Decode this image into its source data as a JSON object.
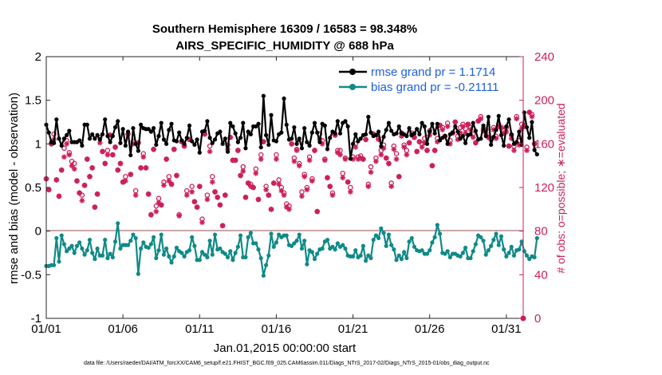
{
  "colors": {
    "rmse": "#000000",
    "bias": "#0f8a87",
    "obs": "#cc1f5c",
    "zero_line": "#c8a7a7",
    "legend_text": "#1f5fe0"
  },
  "chart_data": {
    "type": "line",
    "title": "Southern Hemisphere 16309 / 16583 = 98.348%",
    "subtitle": "AIRS_SPECIFIC_HUMIDITY @ 688 hPa",
    "xlabel": "Jan.01,2015 00:00:00 start",
    "ylabel": "rmse and bias (model - observation)",
    "y2label": "# of obs: o=possible; ∗=evaluated",
    "x_ticks": [
      "01/01",
      "01/06",
      "01/11",
      "01/16",
      "01/21",
      "01/26",
      "01/31"
    ],
    "x_tick_days": [
      1,
      6,
      11,
      16,
      21,
      26,
      31
    ],
    "xlim": [
      1,
      32.1
    ],
    "ylim": [
      -1,
      2
    ],
    "y_ticks": [
      "-1",
      "-0.5",
      "0",
      "0.5",
      "1",
      "1.5",
      "2"
    ],
    "y2lim": [
      0,
      240
    ],
    "y2_ticks": [
      "0",
      "40",
      "80",
      "120",
      "160",
      "200",
      "240"
    ],
    "legend": {
      "position": "top-right",
      "rmse_label": "rmse grand pr = 1.1714",
      "bias_label": "bias grand pr = -0.21111"
    },
    "series": [
      {
        "name": "rmse",
        "axis": "left",
        "values": [
          1.22,
          1.13,
          1.02,
          1.01,
          1.28,
          1.06,
          0.98,
          1.06,
          1.1,
          1.15,
          1.02,
          1.02,
          1.02,
          1.04,
          0.98,
          1.22,
          1.22,
          1.06,
          1.11,
          1.06,
          1.1,
          1.05,
          1.11,
          1.28,
          1.09,
          1.02,
          1.09,
          1.19,
          1.26,
          1.01,
          1.17,
          0.98,
          1.14,
          0.87,
          1.18,
          1.0,
          0.92,
          1.22,
          1.18,
          1.17,
          1.17,
          1.14,
          1.18,
          0.99,
          1.09,
          1.24,
          1.05,
          1.0,
          1.16,
          1.23,
          1.04,
          1.03,
          1.13,
          1.04,
          1.0,
          1.07,
          1.21,
          1.03,
          0.99,
          1.05,
          0.9,
          1.14,
          1.15,
          1.26,
          1.07,
          1.01,
          1.05,
          1.12,
          1.14,
          1.0,
          1.06,
          0.91,
          1.24,
          1.2,
          1.12,
          1.02,
          1.07,
          1.24,
          0.95,
          1.14,
          1.11,
          1.2,
          1.2,
          1.23,
          0.96,
          1.55,
          1.1,
          0.99,
          1.33,
          1.04,
          1.03,
          1.11,
          1.13,
          1.52,
          1.22,
          1.05,
          1.06,
          1.19,
          1.0,
          1.06,
          0.95,
          1.18,
          1.02,
          0.98,
          1.13,
          1.24,
          1.13,
          1.02,
          1.23,
          1.21,
          0.94,
          1.07,
          1.14,
          1.12,
          1.26,
          1.12,
          1.24,
          1.26,
          1.2,
          0.83,
          1.0,
          1.11,
          1.03,
          1.06,
          1.1,
          1.11,
          1.31,
          1.13,
          1.09,
          1.1,
          1.14,
          0.97,
          1.08,
          1.16,
          1.24,
          1.15,
          1.11,
          1.12,
          1.2,
          1.12,
          1.11,
          1.09,
          1.18,
          1.1,
          1.12,
          1.17,
          1.11,
          1.24,
          1.2,
          1.0,
          1.14,
          1.23,
          1.12,
          1.23,
          1.04,
          1.07,
          1.09,
          1.0,
          1.11,
          1.13,
          1.2,
          1.14,
          1.06,
          1.09,
          1.01,
          1.1,
          1.11,
          1.24,
          1.15,
          1.05,
          1.06,
          1.21,
          1.09,
          1.31,
          0.99,
          1.08,
          1.16,
          1.32,
          1.1,
          0.98,
          1.2,
          1.28,
          1.11,
          1.0,
          1.02,
          1.14,
          0.99,
          1.36,
          1.19,
          1.07,
          1.25,
          0.93,
          0.88
        ]
      },
      {
        "name": "bias",
        "axis": "left",
        "values": [
          -0.4,
          -0.4,
          -0.39,
          -0.39,
          -0.08,
          -0.35,
          -0.05,
          -0.15,
          -0.23,
          -0.2,
          -0.17,
          -0.25,
          -0.17,
          -0.13,
          -0.2,
          -0.27,
          -0.22,
          -0.1,
          -0.25,
          -0.32,
          -0.2,
          -0.28,
          -0.28,
          -0.1,
          -0.31,
          -0.26,
          -0.3,
          -0.12,
          0.09,
          -0.2,
          -0.16,
          -0.16,
          -0.16,
          -0.11,
          -0.04,
          -0.08,
          -0.49,
          -0.2,
          -0.13,
          -0.18,
          -0.19,
          -0.15,
          -0.07,
          -0.31,
          -0.22,
          -0.04,
          -0.27,
          -0.2,
          -0.29,
          -0.36,
          -0.29,
          -0.19,
          -0.23,
          -0.25,
          -0.29,
          -0.24,
          -0.22,
          -0.07,
          -0.17,
          -0.33,
          -0.33,
          -0.24,
          -0.27,
          -0.3,
          -0.11,
          -0.27,
          -0.04,
          -0.21,
          -0.2,
          -0.24,
          -0.26,
          -0.3,
          -0.23,
          -0.33,
          -0.25,
          -0.18,
          -0.05,
          -0.3,
          -0.3,
          -0.07,
          -0.02,
          -0.14,
          -0.14,
          -0.21,
          -0.31,
          -0.51,
          -0.39,
          -0.28,
          -0.03,
          -0.18,
          -0.13,
          -0.04,
          -0.07,
          -0.05,
          -0.05,
          -0.16,
          -0.17,
          -0.14,
          -0.11,
          -0.04,
          -0.2,
          -0.11,
          -0.38,
          -0.22,
          -0.24,
          -0.32,
          -0.26,
          -0.21,
          -0.2,
          -0.12,
          -0.1,
          -0.2,
          -0.18,
          -0.21,
          -0.14,
          -0.18,
          -0.16,
          -0.2,
          -0.28,
          -0.29,
          -0.29,
          -0.22,
          -0.3,
          -0.28,
          -0.17,
          -0.34,
          -0.28,
          -0.31,
          -0.1,
          -0.05,
          -0.08,
          0.03,
          -0.02,
          -0.17,
          -0.04,
          -0.16,
          -0.21,
          -0.33,
          -0.28,
          -0.32,
          -0.24,
          -0.31,
          -0.12,
          -0.08,
          -0.18,
          -0.22,
          -0.23,
          -0.22,
          -0.26,
          -0.26,
          -0.22,
          -0.13,
          -0.07,
          0.07,
          -0.03,
          -0.25,
          -0.26,
          -0.23,
          -0.3,
          -0.26,
          -0.26,
          -0.28,
          -0.29,
          -0.25,
          -0.19,
          -0.31,
          -0.31,
          -0.23,
          -0.15,
          -0.05,
          -0.07,
          -0.11,
          -0.27,
          -0.22,
          -0.17,
          -0.1,
          -0.03,
          -0.16,
          -0.06,
          -0.21,
          -0.29,
          -0.25,
          -0.18,
          -0.28,
          -0.22,
          -0.21,
          -0.12,
          -0.23,
          -0.28,
          -0.32,
          -0.29,
          -0.3,
          -0.08
        ]
      },
      {
        "name": "obs possible (o)",
        "axis": "right",
        "marker": "circle",
        "values": [
          128,
          118,
          160,
          169,
          127,
          112,
          136,
          156,
          163,
          152,
          144,
          142,
          126,
          115,
          113,
          122,
          146,
          130,
          138,
          102,
          114,
          166,
          153,
          142,
          154,
          168,
          150,
          157,
          136,
          142,
          125,
          130,
          169,
          132,
          162,
          117,
          161,
          138,
          151,
          138,
          114,
          95,
          155,
          103,
          110,
          104,
          125,
          146,
          130,
          123,
          155,
          131,
          95,
          162,
          158,
          117,
          164,
          121,
          107,
          102,
          121,
          91,
          169,
          113,
          158,
          130,
          116,
          111,
          104,
          85,
          113,
          159,
          166,
          145,
          145,
          154,
          131,
          139,
          111,
          124,
          123,
          120,
          137,
          109,
          150,
          162,
          121,
          113,
          100,
          124,
          150,
          127,
          120,
          115,
          105,
          103,
          160,
          147,
          155,
          142,
          116,
          132,
          120,
          148,
          128,
          154,
          98,
          169,
          163,
          146,
          129,
          121,
          115,
          168,
          154,
          154,
          133,
          147,
          125,
          120,
          148,
          160,
          148,
          149,
          146,
          164,
          123,
          139,
          169,
          147,
          165,
          154,
          159,
          147,
          142,
          124,
          158,
          151,
          130,
          170,
          159,
          154,
          161,
          170,
          166,
          153,
          162,
          160,
          165,
          154,
          172,
          140,
          154,
          165,
          177,
          175,
          167,
          179,
          163,
          170,
          180,
          167,
          175,
          178,
          174,
          178,
          175,
          169,
          161,
          181,
          185,
          174,
          173,
          166,
          164,
          175,
          167,
          178,
          175,
          172,
          175,
          158,
          168,
          158,
          185,
          163,
          178,
          177,
          157,
          189,
          187,
          160
        ]
      },
      {
        "name": "obs evaluated (*)",
        "axis": "right",
        "marker": "asterisk",
        "values": [
          128,
          118,
          160,
          164,
          127,
          112,
          136,
          148,
          160,
          150,
          140,
          137,
          126,
          115,
          108,
          122,
          146,
          130,
          138,
          102,
          114,
          161,
          153,
          142,
          150,
          168,
          150,
          157,
          136,
          142,
          125,
          126,
          169,
          132,
          160,
          113,
          161,
          138,
          148,
          138,
          114,
          95,
          155,
          98,
          106,
          104,
          122,
          146,
          126,
          123,
          155,
          131,
          94,
          162,
          158,
          113,
          164,
          116,
          107,
          102,
          121,
          88,
          169,
          109,
          153,
          125,
          116,
          111,
          104,
          85,
          113,
          155,
          166,
          145,
          145,
          154,
          131,
          135,
          111,
          124,
          121,
          120,
          133,
          109,
          146,
          162,
          118,
          113,
          100,
          124,
          146,
          123,
          117,
          113,
          102,
          100,
          160,
          144,
          154,
          140,
          112,
          130,
          118,
          145,
          126,
          154,
          98,
          164,
          160,
          145,
          129,
          121,
          113,
          168,
          152,
          150,
          129,
          146,
          125,
          116,
          146,
          157,
          146,
          147,
          146,
          164,
          121,
          134,
          169,
          144,
          164,
          150,
          156,
          147,
          142,
          121,
          155,
          146,
          130,
          167,
          157,
          150,
          161,
          168,
          166,
          153,
          162,
          157,
          161,
          154,
          168,
          140,
          154,
          162,
          177,
          173,
          167,
          176,
          160,
          170,
          180,
          164,
          170,
          176,
          170,
          178,
          173,
          166,
          161,
          181,
          183,
          172,
          170,
          166,
          164,
          173,
          165,
          176,
          175,
          170,
          171,
          158,
          165,
          154,
          183,
          159,
          174,
          176,
          154,
          189,
          185,
          160
        ]
      }
    ]
  },
  "footer": "data file: /Users/raeder/DAI/ATM_forcXX/CAM6_setup/f.e21.FHIST_BGC.f09_025.CAM6assim.011/Diags_NTrS_2017-02/Diags_NTrS_2015-01/obs_diag_output.nc"
}
